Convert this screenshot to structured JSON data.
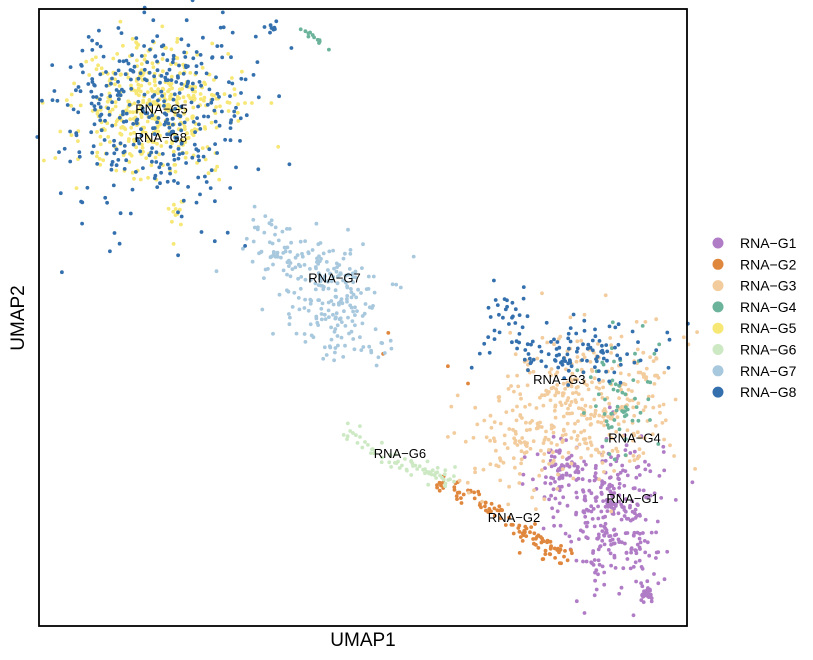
{
  "chart_data": {
    "type": "scatter",
    "xlabel": "UMAP1",
    "ylabel": "UMAP2",
    "xlim": [
      0,
      100
    ],
    "ylim": [
      0,
      100
    ],
    "grid": false,
    "show_ticks": false,
    "legend_position": "right",
    "series": [
      {
        "name": "RNA−G1",
        "color": "#b07cc6",
        "clusters": [
          {
            "cx": 88.6,
            "cy": 18.4,
            "sx": 3.8,
            "sy": 6.3,
            "n": 300
          },
          {
            "cx": 80.3,
            "cy": 25.3,
            "sx": 2.2,
            "sy": 2.7,
            "n": 70
          },
          {
            "cx": 93.8,
            "cy": 5.9,
            "sx": 0.6,
            "sy": 1.2,
            "n": 25
          }
        ]
      },
      {
        "name": "RNA−G2",
        "color": "#e0873e",
        "path": [
          [
            61.4,
            23.1
          ],
          [
            67.6,
            20.4
          ],
          [
            73.8,
            16.5
          ],
          [
            78.5,
            12.4
          ],
          [
            80.8,
            10.8
          ]
        ],
        "spread": 0.9,
        "n": 110,
        "extra": [
          [
            53.9,
            47.5
          ],
          [
            63.1,
            42.1
          ],
          [
            66.2,
            39.3
          ],
          [
            53.1,
            44.1
          ]
        ]
      },
      {
        "name": "RNA−G3",
        "color": "#f3cc9d",
        "clusters": [
          {
            "cx": 85.3,
            "cy": 36.3,
            "sx": 6.3,
            "sy": 6.1,
            "n": 330
          },
          {
            "cx": 73.0,
            "cy": 30.0,
            "sx": 5.0,
            "sy": 5.0,
            "n": 90
          }
        ]
      },
      {
        "name": "RNA−G4",
        "color": "#6bb39a",
        "clusters": [
          {
            "cx": 89.8,
            "cy": 36.1,
            "sx": 2.5,
            "sy": 4.5,
            "n": 60
          }
        ],
        "path": [
          [
            40.4,
            96.7
          ],
          [
            42.0,
            95.9
          ],
          [
            43.5,
            94.7
          ],
          [
            44.5,
            93.3
          ],
          [
            45.6,
            92.2
          ]
        ],
        "spread": 0.35,
        "n_path": 12
      },
      {
        "name": "RNA−G5",
        "color": "#f7e774",
        "clusters": [
          {
            "cx": 18.0,
            "cy": 84.1,
            "sx": 5.7,
            "sy": 5.3,
            "n": 430
          },
          {
            "cx": 21.4,
            "cy": 67.8,
            "sx": 0.5,
            "sy": 1.5,
            "n": 12
          }
        ]
      },
      {
        "name": "RNA−G6",
        "color": "#cde9c4",
        "path": [
          [
            47.1,
            32.4
          ],
          [
            50.2,
            29.3
          ],
          [
            54.9,
            26.6
          ],
          [
            59.5,
            25.1
          ],
          [
            63.1,
            23.9
          ]
        ],
        "spread": 0.7,
        "n": 70
      },
      {
        "name": "RNA−G7",
        "color": "#a8c8de",
        "clusters": [
          {
            "cx": 45.2,
            "cy": 53.4,
            "sx": 4.0,
            "sy": 4.6,
            "n": 180
          },
          {
            "cx": 37.0,
            "cy": 60.0,
            "sx": 3.0,
            "sy": 2.5,
            "n": 40
          }
        ],
        "path": [
          [
            32.3,
            68.5
          ],
          [
            37.8,
            62.6
          ],
          [
            43.0,
            55.8
          ],
          [
            50.2,
            45.3
          ],
          [
            54.0,
            41.6
          ]
        ],
        "spread": 1.6,
        "n_path": 50
      },
      {
        "name": "RNA−G8",
        "color": "#3470ad",
        "clusters": [
          {
            "cx": 17.4,
            "cy": 83.1,
            "sx": 7.6,
            "sy": 8.5,
            "n": 380
          },
          {
            "cx": 82.2,
            "cy": 45.0,
            "sx": 7.0,
            "sy": 2.4,
            "n": 110
          },
          {
            "cx": 72.8,
            "cy": 51.6,
            "sx": 1.6,
            "sy": 2.2,
            "n": 25
          }
        ],
        "path": [
          [
            35.0,
            96.5
          ],
          [
            35.7,
            96.9
          ],
          [
            36.5,
            97.2
          ]
        ],
        "spread": 0.3,
        "n_path": 8
      }
    ],
    "cluster_labels": [
      {
        "text": "RNA−G5",
        "x": 18.9,
        "y": 83.7
      },
      {
        "text": "RNA−G8",
        "x": 18.8,
        "y": 79.1
      },
      {
        "text": "RNA−G7",
        "x": 45.6,
        "y": 56.3
      },
      {
        "text": "RNA−G3",
        "x": 80.3,
        "y": 39.9
      },
      {
        "text": "RNA−G4",
        "x": 91.9,
        "y": 30.4
      },
      {
        "text": "RNA−G6",
        "x": 55.7,
        "y": 27.9
      },
      {
        "text": "RNA−G2",
        "x": 73.3,
        "y": 17.5
      },
      {
        "text": "RNA−G1",
        "x": 91.6,
        "y": 20.6
      }
    ]
  }
}
